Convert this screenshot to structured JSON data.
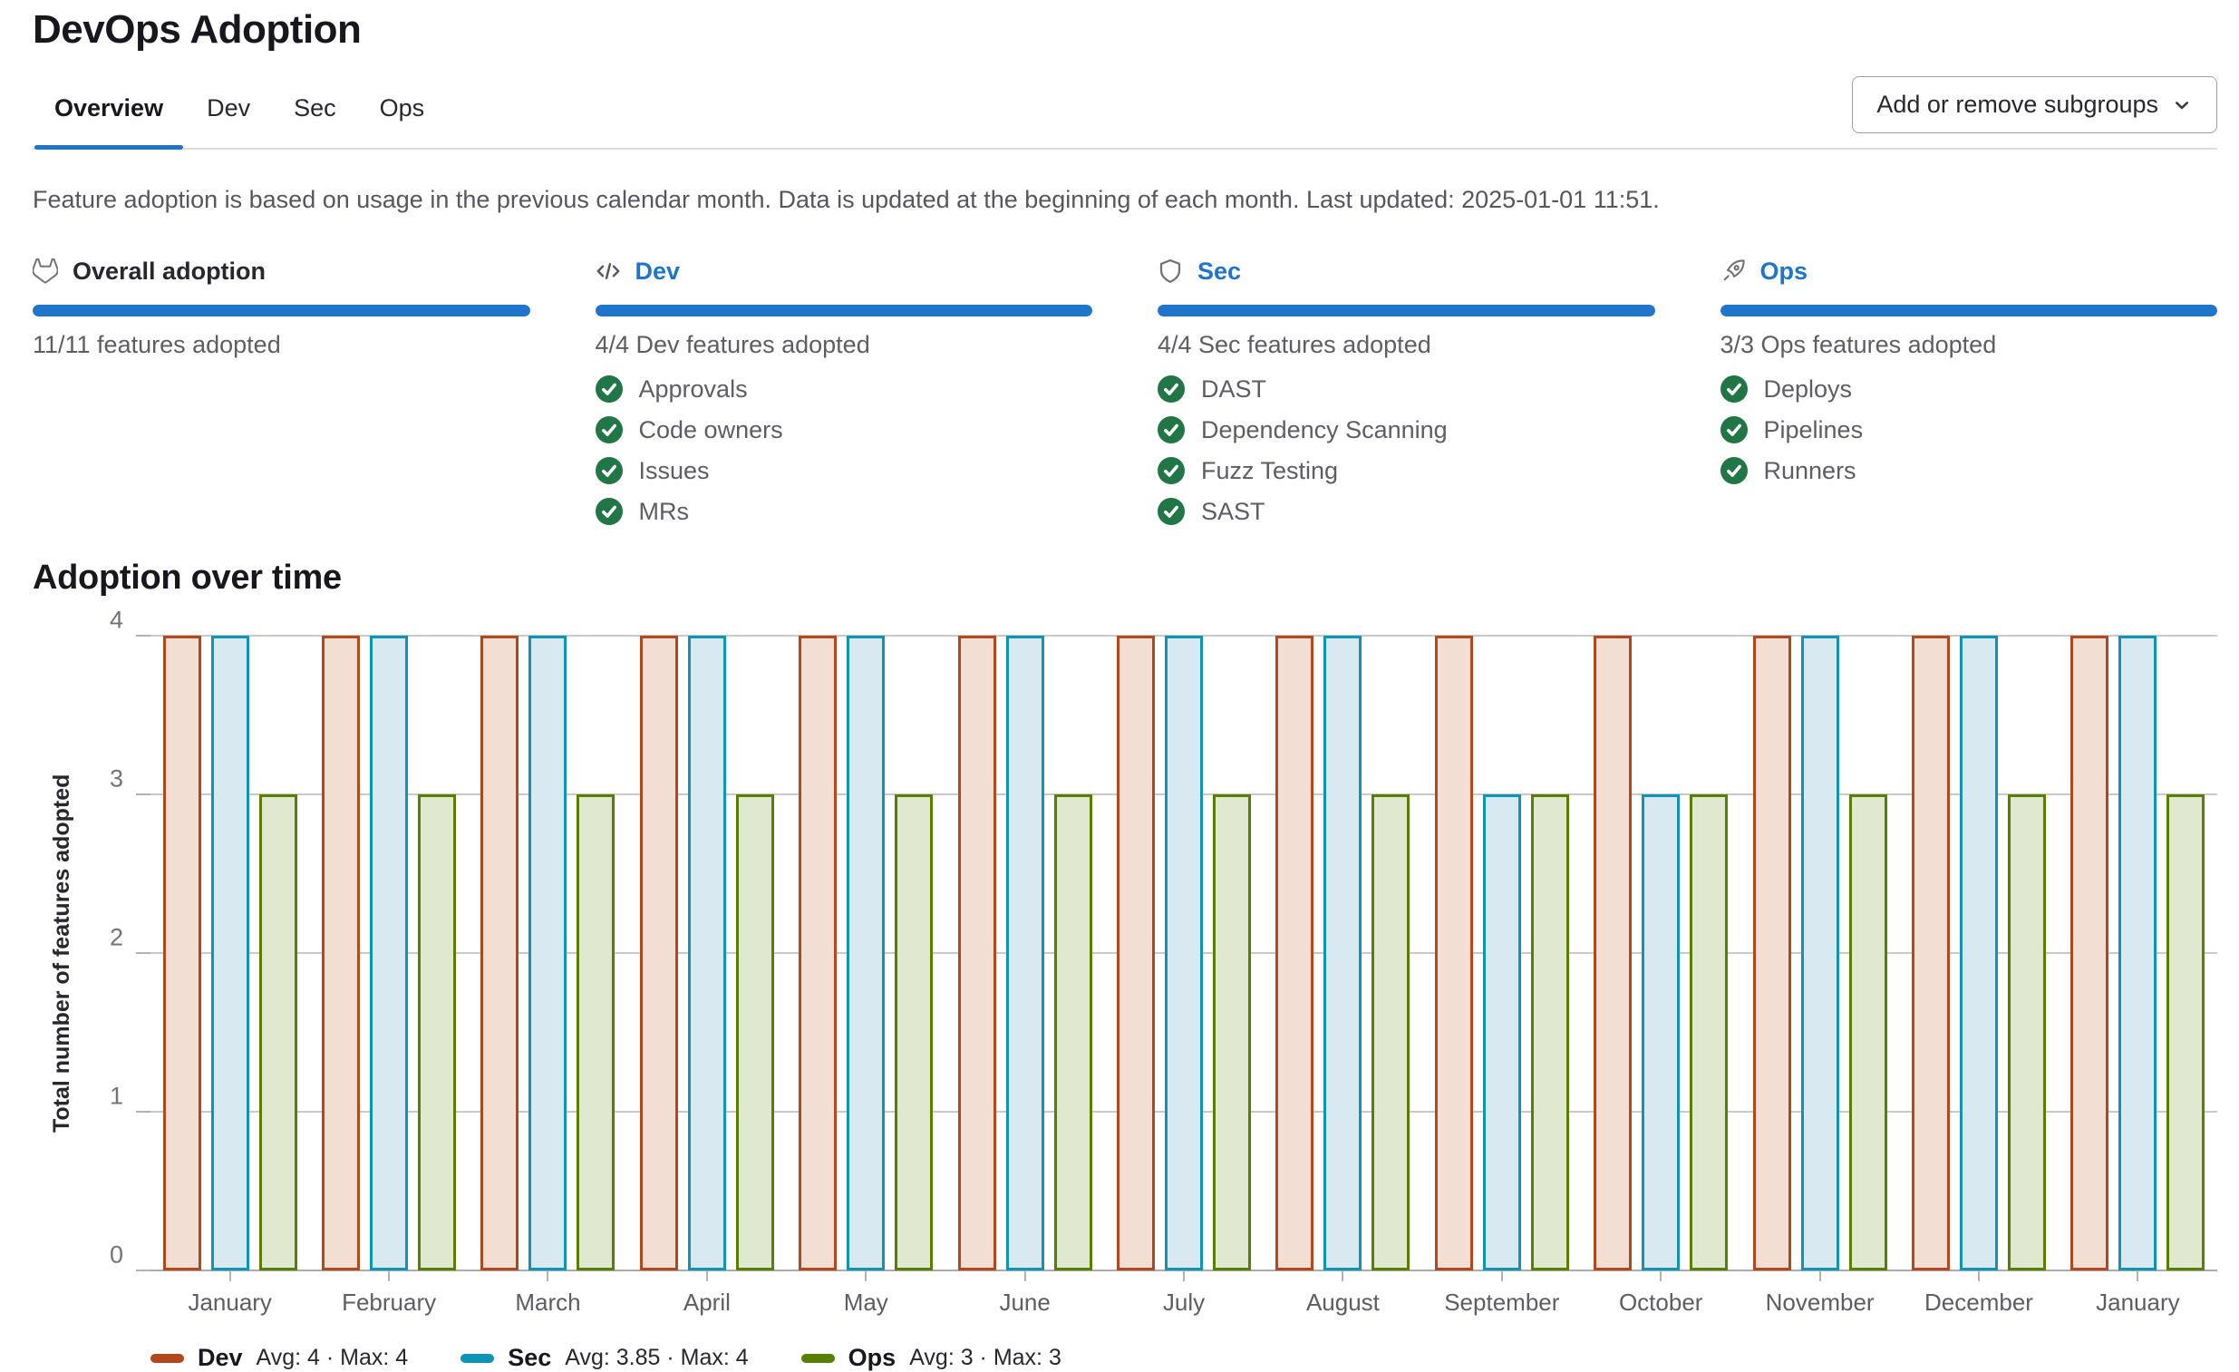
{
  "page": {
    "title": "DevOps Adoption"
  },
  "tabs": [
    {
      "label": "Overview",
      "active": true
    },
    {
      "label": "Dev",
      "active": false
    },
    {
      "label": "Sec",
      "active": false
    },
    {
      "label": "Ops",
      "active": false
    }
  ],
  "toolbar": {
    "subgroups_button": "Add or remove subgroups"
  },
  "info_text": "Feature adoption is based on usage in the previous calendar month. Data is updated at the beginning of each month. Last updated: 2025-01-01 11:51.",
  "cards": [
    {
      "id": "overall",
      "icon": "gitlab-tanuki-icon",
      "title": "Overall adoption",
      "is_link": false,
      "progress": 1,
      "caption": "11/11 features adopted",
      "features": []
    },
    {
      "id": "dev",
      "icon": "code-icon",
      "title": "Dev",
      "is_link": true,
      "progress": 1,
      "caption": "4/4 Dev features adopted",
      "features": [
        "Approvals",
        "Code owners",
        "Issues",
        "MRs"
      ]
    },
    {
      "id": "sec",
      "icon": "shield-icon",
      "title": "Sec",
      "is_link": true,
      "progress": 1,
      "caption": "4/4 Sec features adopted",
      "features": [
        "DAST",
        "Dependency Scanning",
        "Fuzz Testing",
        "SAST"
      ]
    },
    {
      "id": "ops",
      "icon": "rocket-icon",
      "title": "Ops",
      "is_link": true,
      "progress": 1,
      "caption": "3/3 Ops features adopted",
      "features": [
        "Deploys",
        "Pipelines",
        "Runners"
      ]
    }
  ],
  "section_title": "Adoption over time",
  "chart_data": {
    "type": "bar",
    "title": "Adoption over time",
    "xlabel": "",
    "ylabel": "Total number of features adopted",
    "ylim": [
      0,
      4
    ],
    "yticks": [
      0,
      1,
      2,
      3,
      4
    ],
    "grid": true,
    "legend_position": "bottom",
    "categories": [
      "January",
      "February",
      "March",
      "April",
      "May",
      "June",
      "July",
      "August",
      "September",
      "October",
      "November",
      "December",
      "January"
    ],
    "series": [
      {
        "name": "Dev",
        "color": "#b2481c",
        "fill": "#f3ded4",
        "values": [
          4,
          4,
          4,
          4,
          4,
          4,
          4,
          4,
          4,
          4,
          4,
          4,
          4
        ],
        "legend_stats": "Avg: 4 · Max: 4"
      },
      {
        "name": "Sec",
        "color": "#0e95b5",
        "fill": "#d8e9f1",
        "values": [
          4,
          4,
          4,
          4,
          4,
          4,
          4,
          4,
          3,
          3,
          4,
          4,
          4
        ],
        "legend_stats": "Avg: 3.85 · Max: 4"
      },
      {
        "name": "Ops",
        "color": "#578000",
        "fill": "#e0e8d0",
        "values": [
          3,
          3,
          3,
          3,
          3,
          3,
          3,
          3,
          3,
          3,
          3,
          3,
          3
        ],
        "legend_stats": "Avg: 3 · Max: 3"
      }
    ]
  },
  "colors": {
    "accent": "#1f75cb",
    "progress": "#1f75cb",
    "check_green": "#217645",
    "icon_gray": "#737278"
  }
}
